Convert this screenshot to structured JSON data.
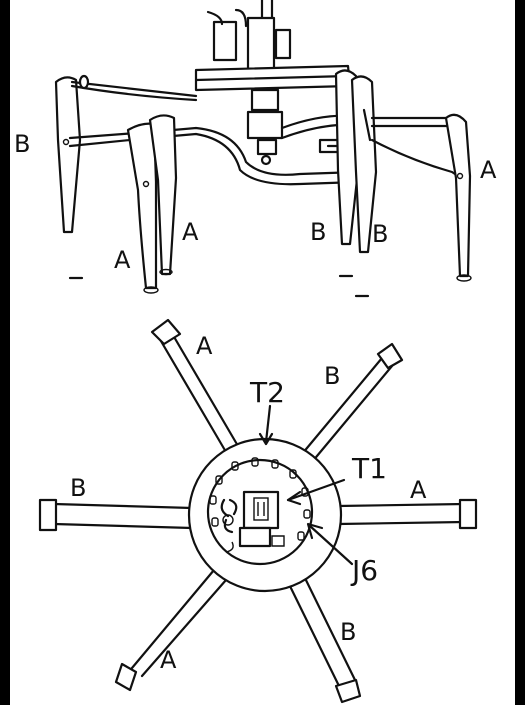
{
  "side_view": {
    "labels": [
      {
        "id": "left-outer",
        "text": "B"
      },
      {
        "id": "left-inner-a1",
        "text": "A"
      },
      {
        "id": "left-inner-a2",
        "text": "A"
      },
      {
        "id": "right-inner-b1",
        "text": "B"
      },
      {
        "id": "right-inner-b2",
        "text": "B"
      },
      {
        "id": "right-outer",
        "text": "A"
      }
    ]
  },
  "top_view": {
    "legs": [
      {
        "id": "upper-left",
        "text": "A"
      },
      {
        "id": "upper-right",
        "text": "B"
      },
      {
        "id": "left",
        "text": "B"
      },
      {
        "id": "right",
        "text": "A"
      },
      {
        "id": "lower-left",
        "text": "A"
      },
      {
        "id": "lower-right",
        "text": "B"
      }
    ],
    "callouts": {
      "t2": "T2",
      "t1": "T1",
      "j6": "J6"
    }
  }
}
